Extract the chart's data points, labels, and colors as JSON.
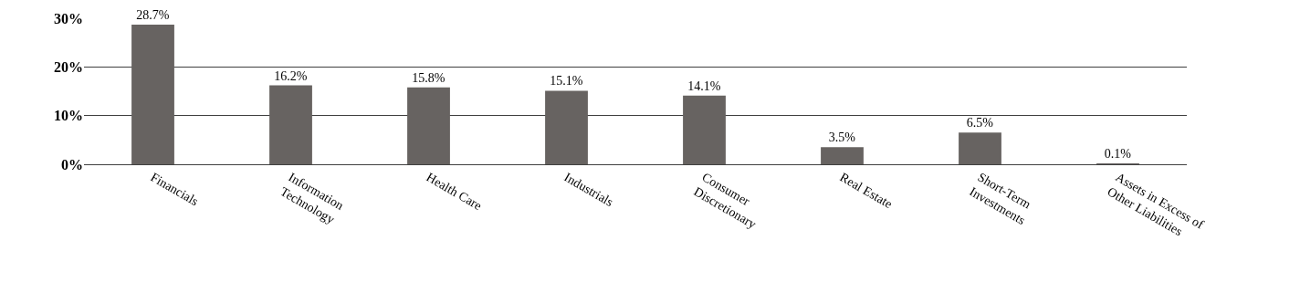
{
  "chart_data": {
    "type": "bar",
    "categories": [
      "Financials",
      "Information\nTechnology",
      "Health Care",
      "Industrials",
      "Consumer\nDiscretionary",
      "Real Estate",
      "Short-Term\nInvestments",
      "Assets in Excess of\nOther Liabilities"
    ],
    "values": [
      28.7,
      16.2,
      15.8,
      15.1,
      14.1,
      3.5,
      6.5,
      0.1
    ],
    "value_labels": [
      "28.7%",
      "16.2%",
      "15.8%",
      "15.1%",
      "14.1%",
      "3.5%",
      "6.5%",
      "0.1%"
    ],
    "color": "#676361",
    "ylim": [
      0,
      30
    ],
    "yticks": [
      {
        "value": 0,
        "label": "0%"
      },
      {
        "value": 10,
        "label": "10%"
      },
      {
        "value": 20,
        "label": "20%"
      },
      {
        "value": 30,
        "label": "30%"
      }
    ],
    "grid": "y",
    "legend": false
  }
}
